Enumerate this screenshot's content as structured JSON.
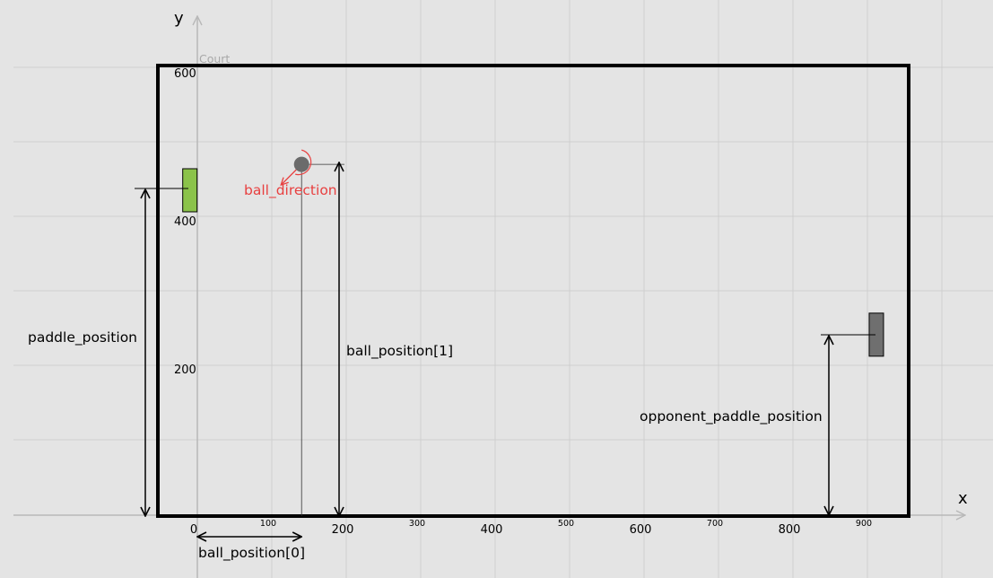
{
  "axes": {
    "x_name": "x",
    "y_name": "y"
  },
  "court": {
    "title": "Court"
  },
  "ticks": {
    "x": [
      {
        "value": 0,
        "label": "0",
        "style": "major"
      },
      {
        "value": 100,
        "label": "100",
        "style": "minor"
      },
      {
        "value": 200,
        "label": "200",
        "style": "major"
      },
      {
        "value": 300,
        "label": "300",
        "style": "minor"
      },
      {
        "value": 400,
        "label": "400",
        "style": "major"
      },
      {
        "value": 500,
        "label": "500",
        "style": "minor"
      },
      {
        "value": 600,
        "label": "600",
        "style": "major"
      },
      {
        "value": 700,
        "label": "700",
        "style": "minor"
      },
      {
        "value": 800,
        "label": "800",
        "style": "major"
      },
      {
        "value": 900,
        "label": "900",
        "style": "minor"
      }
    ],
    "y": [
      {
        "value": 200,
        "label": "200"
      },
      {
        "value": 400,
        "label": "400"
      },
      {
        "value": 600,
        "label": "600"
      }
    ]
  },
  "objects": {
    "paddle": {
      "x": -10,
      "y_center": 440,
      "color": "#8bc34a"
    },
    "ball": {
      "x": 140,
      "y": 475,
      "color": "#6b6b6b"
    },
    "opponent_paddle": {
      "x": 912,
      "y_center": 245,
      "color": "#6f6f6f"
    }
  },
  "annotations": {
    "paddle_position": "paddle_position",
    "ball_position_0": "ball_position[0]",
    "ball_position_1": "ball_position[1]",
    "opponent_paddle_position": "opponent_paddle_position",
    "ball_direction": "ball_direction"
  },
  "colors": {
    "background": "#e4e4e4",
    "grid": "#cfcfcf",
    "axis": "#b8b8b8",
    "court_border": "#000000",
    "direction": "#e84040"
  }
}
